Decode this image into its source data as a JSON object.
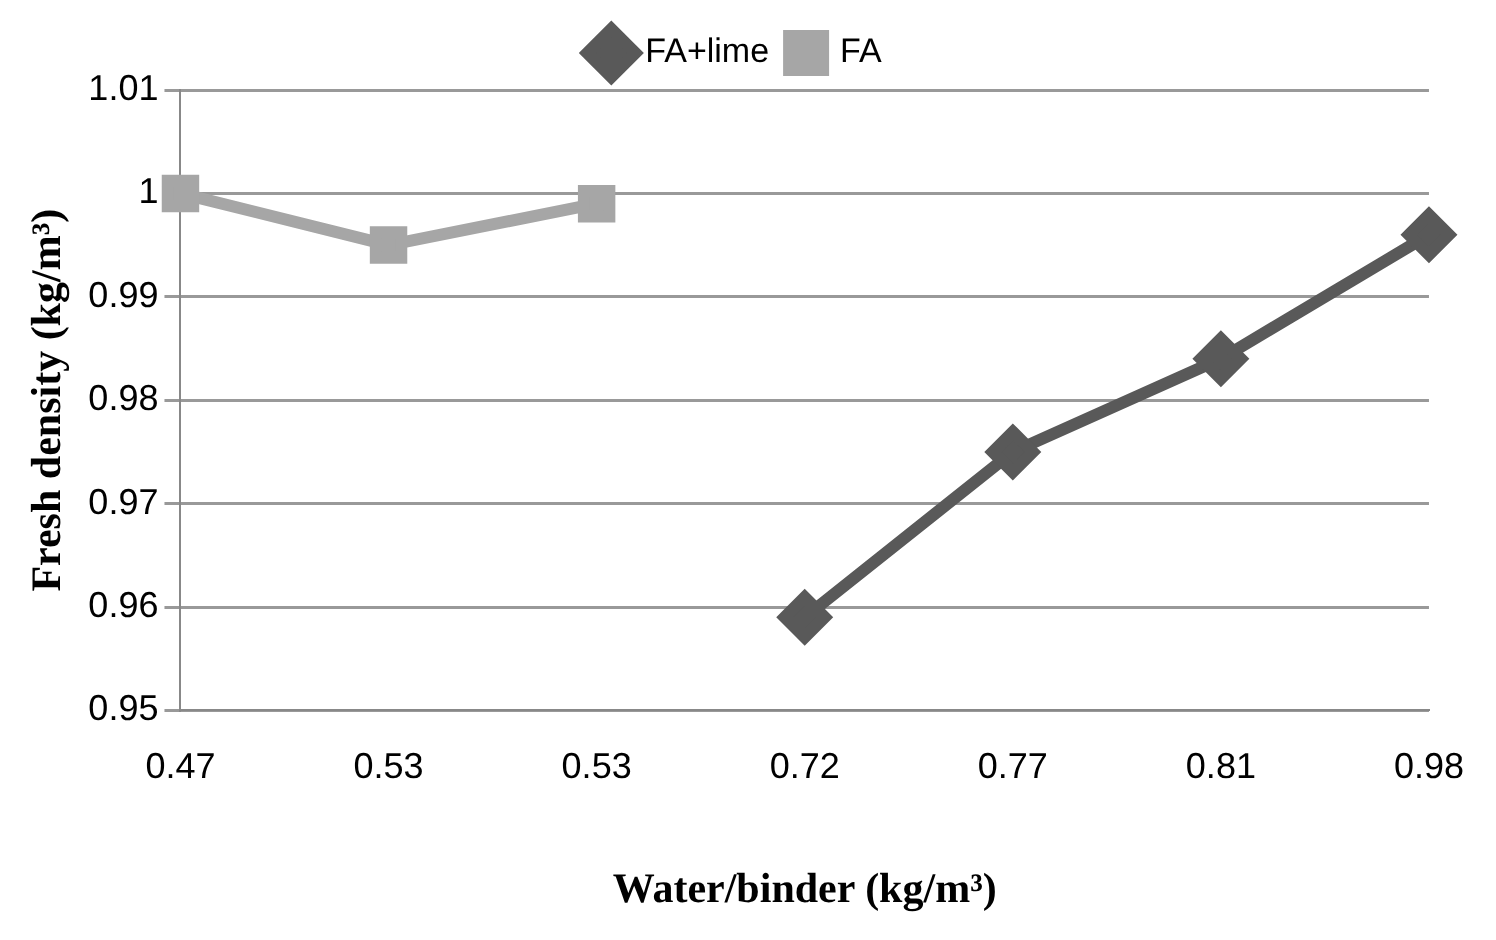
{
  "chart_data": {
    "type": "line",
    "xlabel": "Water/binder (kg/m³)",
    "ylabel": "Fresh density (kg/m³)",
    "categories": [
      "0.47",
      "0.53",
      "0.53",
      "0.72",
      "0.77",
      "0.81",
      "0.98"
    ],
    "series": [
      {
        "name": "FA+lime",
        "color": "#595959",
        "marker": "diamond",
        "values": [
          null,
          null,
          null,
          0.959,
          0.975,
          0.984,
          0.996
        ]
      },
      {
        "name": "FA",
        "color": "#a6a6a6",
        "marker": "square",
        "values": [
          1.0,
          0.995,
          0.999,
          null,
          null,
          null,
          null
        ]
      }
    ],
    "ylim": [
      0.95,
      1.01
    ],
    "yticks": [
      0.95,
      0.96,
      0.97,
      0.98,
      0.99,
      1,
      1.01
    ],
    "grid": "y",
    "legend": "top",
    "line_style": "solid"
  }
}
